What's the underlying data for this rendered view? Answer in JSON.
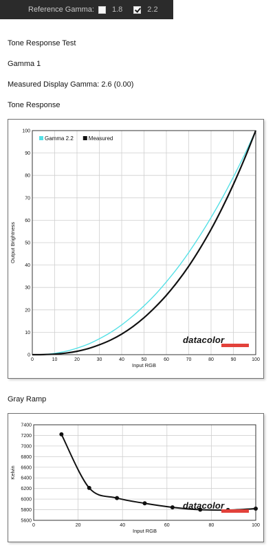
{
  "top_bar": {
    "reference_label": "Reference Gamma:",
    "options": [
      {
        "label": "1.8",
        "checked": false
      },
      {
        "label": "2.2",
        "checked": true
      }
    ]
  },
  "sections": {
    "test_title": "Tone Response Test",
    "gamma_name": "Gamma 1",
    "measured": "Measured Display Gamma: 2.6 (0.00)",
    "tone_heading": "Tone Response",
    "gray_heading": "Gray Ramp"
  },
  "brand": {
    "text": "datacolor",
    "color": "#e2413a"
  },
  "chart_data": [
    {
      "type": "line",
      "xlabel": "Input RGB",
      "ylabel": "Output Brightness",
      "xlim": [
        0,
        100
      ],
      "ylim": [
        0,
        100
      ],
      "x_ticks": [
        0,
        10,
        20,
        30,
        40,
        50,
        60,
        70,
        80,
        90,
        100
      ],
      "y_ticks": [
        0,
        10,
        20,
        30,
        40,
        50,
        60,
        70,
        80,
        90,
        100
      ],
      "grid": true,
      "legend_position": "top-left",
      "series": [
        {
          "name": "Gamma 2.2",
          "color": "#55e0e6",
          "x": [
            0,
            5,
            10,
            15,
            20,
            25,
            30,
            35,
            40,
            45,
            50,
            55,
            60,
            65,
            70,
            75,
            80,
            85,
            90,
            95,
            100
          ],
          "y": [
            0,
            0.1,
            0.6,
            1.5,
            2.9,
            4.7,
            7.1,
            9.9,
            13.3,
            17.3,
            21.8,
            26.8,
            32.5,
            38.7,
            45.6,
            53.1,
            61.2,
            69.9,
            79.3,
            89.3,
            100
          ]
        },
        {
          "name": "Measured",
          "color": "#111111",
          "x": [
            0,
            5,
            10,
            15,
            20,
            25,
            30,
            35,
            40,
            45,
            50,
            55,
            60,
            65,
            70,
            75,
            80,
            85,
            90,
            95,
            100
          ],
          "y": [
            0,
            0.04,
            0.25,
            0.7,
            1.5,
            2.7,
            4.4,
            6.5,
            9.2,
            12.5,
            16.5,
            21.2,
            26.5,
            32.6,
            39.5,
            47.3,
            55.9,
            65.5,
            76.0,
            87.5,
            100
          ]
        }
      ]
    },
    {
      "type": "line",
      "xlabel": "Input RGB",
      "ylabel": "Kelvin",
      "xlim": [
        0,
        100
      ],
      "ylim": [
        5600,
        7400
      ],
      "x_ticks": [
        0,
        20,
        40,
        60,
        80,
        100
      ],
      "y_ticks": [
        5600,
        5800,
        6000,
        6200,
        6400,
        6600,
        6800,
        7000,
        7200,
        7400
      ],
      "grid": true,
      "series": [
        {
          "color": "#111111",
          "x": [
            12.5,
            25,
            37.5,
            50,
            62.5,
            75,
            87.5,
            100
          ],
          "y": [
            7220,
            6210,
            6020,
            5920,
            5845,
            5800,
            5795,
            5820
          ]
        }
      ]
    }
  ]
}
